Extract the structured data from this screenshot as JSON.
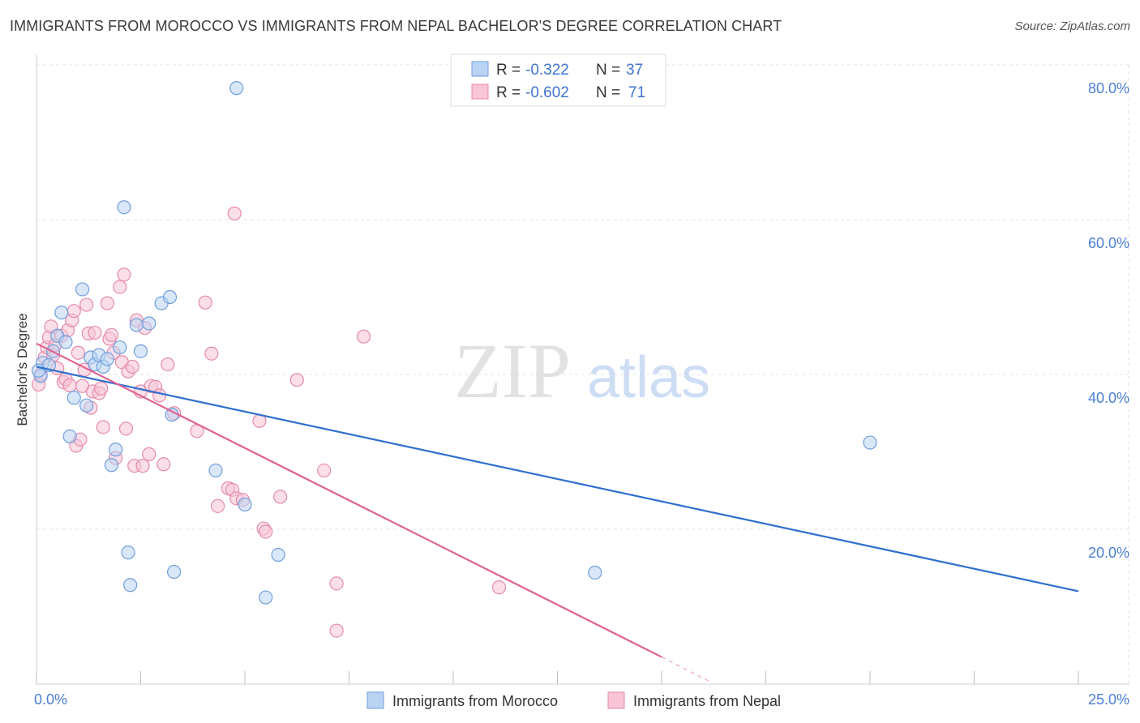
{
  "header": {
    "title": "IMMIGRANTS FROM MOROCCO VS IMMIGRANTS FROM NEPAL BACHELOR'S DEGREE CORRELATION CHART",
    "source": "Source: ZipAtlas.com"
  },
  "watermark": {
    "zip": "ZIP",
    "atlas": "atlas"
  },
  "colors": {
    "morocco_fill": "#b9d3f3",
    "morocco_stroke": "#6f9fdc",
    "morocco_line": "#2f6fcf",
    "nepal_fill": "#f8c4d6",
    "nepal_stroke": "#e58aab",
    "nepal_line": "#e0628f",
    "tick_text": "#4a7fd4",
    "grid": "#e3e3e3"
  },
  "chart_data": {
    "type": "scatter",
    "title": "IMMIGRANTS FROM MOROCCO VS IMMIGRANTS FROM NEPAL BACHELOR'S DEGREE CORRELATION CHART",
    "xlabel": "",
    "ylabel": "Bachelor's Degree",
    "xlim": [
      0,
      25
    ],
    "ylim": [
      0,
      80
    ],
    "x_tick_labels": [
      "0.0%",
      "25.0%"
    ],
    "y_ticks": [
      20,
      40,
      60,
      80
    ],
    "y_tick_labels": [
      "20.0%",
      "40.0%",
      "60.0%",
      "80.0%"
    ],
    "grid": true,
    "legend_position": "bottom-center",
    "stats_box": [
      {
        "r_label": "R =",
        "r_value": "-0.322",
        "n_label": "N =",
        "n_value": "37"
      },
      {
        "r_label": "R =",
        "r_value": "-0.602",
        "n_label": "N =",
        "n_value": "71"
      }
    ],
    "series": [
      {
        "name": "Immigrants from Morocco",
        "color": "#6f9fdc",
        "trend": {
          "x": [
            0,
            25
          ],
          "y": [
            41.0,
            12.0
          ]
        },
        "points": [
          [
            0.1,
            39.8
          ],
          [
            0.15,
            41.5
          ],
          [
            0.3,
            41.2
          ],
          [
            0.4,
            43.0
          ],
          [
            0.5,
            45.0
          ],
          [
            0.6,
            48.0
          ],
          [
            0.7,
            44.2
          ],
          [
            0.8,
            32.0
          ],
          [
            0.9,
            37.0
          ],
          [
            1.1,
            51.0
          ],
          [
            1.2,
            36.0
          ],
          [
            1.3,
            42.2
          ],
          [
            1.4,
            41.3
          ],
          [
            1.5,
            42.5
          ],
          [
            1.6,
            41.0
          ],
          [
            1.7,
            42.0
          ],
          [
            1.8,
            28.3
          ],
          [
            1.9,
            30.3
          ],
          [
            2.0,
            43.5
          ],
          [
            2.1,
            61.6
          ],
          [
            2.2,
            17.0
          ],
          [
            2.25,
            12.8
          ],
          [
            2.4,
            46.4
          ],
          [
            2.5,
            43.0
          ],
          [
            2.7,
            46.6
          ],
          [
            3.0,
            49.2
          ],
          [
            3.2,
            50.0
          ],
          [
            3.25,
            34.8
          ],
          [
            3.3,
            14.5
          ],
          [
            4.3,
            27.6
          ],
          [
            4.8,
            77.0
          ],
          [
            5.0,
            23.2
          ],
          [
            5.5,
            11.2
          ],
          [
            5.8,
            16.7
          ],
          [
            13.4,
            14.4
          ],
          [
            20.0,
            31.2
          ],
          [
            0.05,
            40.5
          ]
        ]
      },
      {
        "name": "Immigrants from Nepal",
        "color": "#e58aab",
        "trend": {
          "x": [
            0,
            15.0
          ],
          "y": [
            44.0,
            3.5
          ]
        },
        "trend_dashed": {
          "x": [
            15.0,
            16.2
          ],
          "y": [
            3.5,
            0.2
          ]
        },
        "points": [
          [
            0.05,
            38.7
          ],
          [
            0.1,
            40.0
          ],
          [
            0.2,
            42.2
          ],
          [
            0.25,
            43.5
          ],
          [
            0.3,
            44.8
          ],
          [
            0.35,
            46.2
          ],
          [
            0.4,
            42.5
          ],
          [
            0.45,
            43.8
          ],
          [
            0.5,
            40.8
          ],
          [
            0.6,
            45.0
          ],
          [
            0.65,
            39.0
          ],
          [
            0.7,
            39.4
          ],
          [
            0.75,
            45.7
          ],
          [
            0.8,
            38.6
          ],
          [
            0.85,
            47.0
          ],
          [
            0.9,
            48.2
          ],
          [
            0.95,
            30.8
          ],
          [
            1.0,
            42.8
          ],
          [
            1.05,
            31.6
          ],
          [
            1.1,
            38.5
          ],
          [
            1.15,
            40.6
          ],
          [
            1.2,
            49.0
          ],
          [
            1.25,
            45.3
          ],
          [
            1.3,
            35.7
          ],
          [
            1.35,
            37.8
          ],
          [
            1.4,
            45.4
          ],
          [
            1.5,
            37.6
          ],
          [
            1.55,
            38.2
          ],
          [
            1.6,
            33.2
          ],
          [
            1.7,
            49.2
          ],
          [
            1.75,
            44.6
          ],
          [
            1.8,
            45.1
          ],
          [
            1.85,
            42.8
          ],
          [
            1.9,
            29.2
          ],
          [
            2.0,
            51.3
          ],
          [
            2.05,
            41.6
          ],
          [
            2.1,
            52.9
          ],
          [
            2.15,
            33.0
          ],
          [
            2.2,
            40.4
          ],
          [
            2.3,
            41.0
          ],
          [
            2.35,
            28.2
          ],
          [
            2.4,
            47.0
          ],
          [
            2.5,
            37.8
          ],
          [
            2.55,
            28.2
          ],
          [
            2.6,
            46.0
          ],
          [
            2.7,
            29.7
          ],
          [
            2.75,
            38.5
          ],
          [
            2.85,
            38.4
          ],
          [
            2.95,
            37.3
          ],
          [
            3.05,
            28.4
          ],
          [
            3.15,
            41.3
          ],
          [
            3.3,
            35.0
          ],
          [
            3.85,
            32.7
          ],
          [
            4.05,
            49.3
          ],
          [
            4.2,
            42.7
          ],
          [
            4.35,
            23.0
          ],
          [
            4.6,
            25.3
          ],
          [
            4.7,
            25.1
          ],
          [
            4.75,
            60.8
          ],
          [
            4.8,
            24.0
          ],
          [
            4.95,
            23.8
          ],
          [
            5.35,
            34.0
          ],
          [
            5.45,
            20.1
          ],
          [
            5.5,
            19.7
          ],
          [
            5.85,
            24.2
          ],
          [
            6.25,
            39.3
          ],
          [
            6.9,
            27.6
          ],
          [
            7.2,
            13.0
          ],
          [
            7.2,
            6.9
          ],
          [
            7.85,
            44.9
          ],
          [
            11.1,
            12.5
          ]
        ]
      }
    ]
  }
}
